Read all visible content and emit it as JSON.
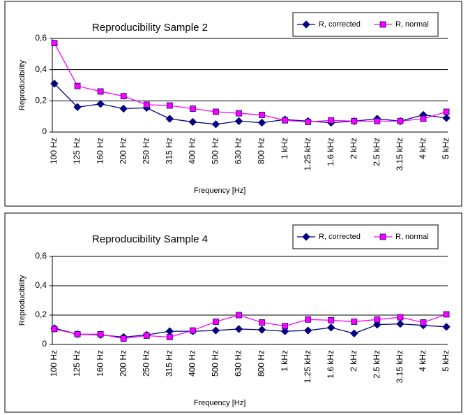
{
  "chart_data": [
    {
      "type": "line",
      "title": "Reproducibility Sample 2",
      "x_label": "Frequency [Hz]",
      "y_label": "Reproducibility",
      "categories": [
        "100 Hz",
        "125 Hz",
        "160 Hz",
        "200 Hz",
        "250 Hz",
        "315 Hz",
        "400 Hz",
        "500 Hz",
        "630 Hz",
        "800 Hz",
        "1 kHz",
        "1.25 kHz",
        "1.6 kHz",
        "2 kHz",
        "2.5 kHz",
        "3.15 kHz",
        "4 kHz",
        "5 kHz"
      ],
      "series": [
        {
          "name": "R, corrected",
          "color": "#000080",
          "marker": "diamond",
          "values": [
            0.31,
            0.16,
            0.18,
            0.15,
            0.155,
            0.085,
            0.065,
            0.05,
            0.07,
            0.06,
            0.08,
            0.07,
            0.06,
            0.07,
            0.085,
            0.07,
            0.11,
            0.09
          ]
        },
        {
          "name": "R, normal",
          "color": "#ff00ff",
          "marker": "square",
          "values": [
            0.57,
            0.295,
            0.26,
            0.23,
            0.175,
            0.17,
            0.15,
            0.13,
            0.12,
            0.11,
            0.075,
            0.065,
            0.075,
            0.07,
            0.07,
            0.07,
            0.085,
            0.13
          ]
        }
      ],
      "ylim": [
        0,
        0.6
      ],
      "yticks": [
        {
          "value": 0,
          "label": "0"
        },
        {
          "value": 0.2,
          "label": "0,2"
        },
        {
          "value": 0.4,
          "label": "0,4"
        },
        {
          "value": 0.6,
          "label": "0,6"
        }
      ],
      "grid": true,
      "legend": "upper right"
    },
    {
      "type": "line",
      "title": "Reproducibility Sample 4",
      "x_label": "Frequency [Hz]",
      "y_label": "Reproducibility",
      "categories": [
        "100 Hz",
        "125 Hz",
        "160 Hz",
        "200 Hz",
        "250 Hz",
        "315 Hz",
        "400 Hz",
        "500 Hz",
        "630 Hz",
        "800 Hz",
        "1 kHz",
        "1.25 kHz",
        "1.6 kHz",
        "2 kHz",
        "2.5 kHz",
        "3.15 kHz",
        "4 kHz",
        "5 kHz"
      ],
      "series": [
        {
          "name": "R, corrected",
          "color": "#000080",
          "marker": "diamond",
          "values": [
            0.11,
            0.07,
            0.065,
            0.05,
            0.065,
            0.09,
            0.09,
            0.095,
            0.105,
            0.1,
            0.09,
            0.095,
            0.115,
            0.075,
            0.135,
            0.14,
            0.13,
            0.12
          ]
        },
        {
          "name": "R, normal",
          "color": "#ff00ff",
          "marker": "square",
          "values": [
            0.105,
            0.07,
            0.07,
            0.04,
            0.06,
            0.05,
            0.095,
            0.155,
            0.2,
            0.15,
            0.125,
            0.17,
            0.165,
            0.155,
            0.17,
            0.185,
            0.15,
            0.205
          ]
        }
      ],
      "ylim": [
        0,
        0.6
      ],
      "yticks": [
        {
          "value": 0,
          "label": "0"
        },
        {
          "value": 0.2,
          "label": "0,2"
        },
        {
          "value": 0.4,
          "label": "0,4"
        },
        {
          "value": 0.6,
          "label": "0,6"
        }
      ],
      "grid": true,
      "legend": "upper right"
    }
  ]
}
